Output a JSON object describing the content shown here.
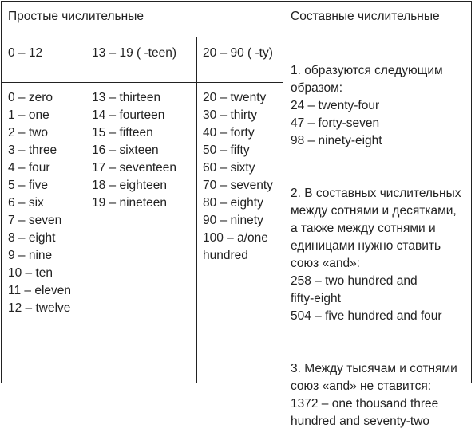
{
  "headers": {
    "simple": "Простые числительные",
    "compound": "Составные числительные"
  },
  "subheaders": {
    "range_0_12": "0 – 12",
    "range_13_19": "13 – 19 ( -teen)",
    "range_20_90": "20 – 90 ( -ty)"
  },
  "lists": {
    "zero_to_twelve": "0 – zero\n1 – one\n2 – two\n3 – three\n4 – four\n5 – five\n6 – six\n7 – seven\n8 – eight\n9 – nine\n10 – ten\n11 – eleven\n12 – twelve",
    "teens": "13 – thirteen\n14 – fourteen\n15 – fifteen\n16 – sixteen\n17 – seventeen\n18 – eighteen\n19 – nineteen",
    "tens": "20 – twenty\n30 – thirty\n40 – forty\n50 – fifty\n60 – sixty\n70 – seventy\n80 – eighty\n90 – ninety\n100 – a/one\nhundred"
  },
  "compound_notes": {
    "rule1": "1. образуются следующим\nобразом:\n24 – twenty-four\n47 – forty-seven\n98 – ninety-eight",
    "rule2": "2. В составных числительных\nмежду сотнями и десятками,\nа также между сотнями и\nединицами нужно ставить\nсоюз «and»:\n258 – two hundred and\nfifty-eight\n504 – five hundred and four",
    "rule3": "3. Между тысячам и сотнями\nсоюз «and» не ставится:\n1372 – one thousand three\nhundred and seventy-two"
  }
}
